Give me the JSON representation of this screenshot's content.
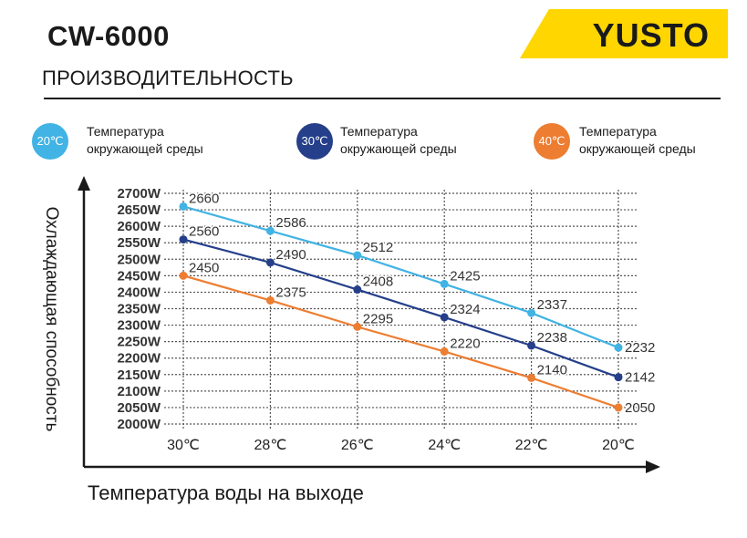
{
  "header": {
    "model": "CW-6000",
    "brand": "YUSTO",
    "section_title": "ПРОИЗВОДИТЕЛЬНОСТЬ"
  },
  "legend": [
    {
      "badge": "20℃",
      "line1": "Температура",
      "line2": "окружающей среды",
      "color": "#41b3e4"
    },
    {
      "badge": "30℃",
      "line1": "Температура",
      "line2": "окружающей среды",
      "color": "#253f8a"
    },
    {
      "badge": "40℃",
      "line1": "Температура",
      "line2": "окружающей среды",
      "color": "#ed7d31"
    }
  ],
  "chart_data": {
    "type": "line",
    "title": "",
    "xlabel": "Температура воды на выходе",
    "ylabel": "Охлаждающая способность",
    "categories": [
      "30℃",
      "28℃",
      "26℃",
      "24℃",
      "22℃",
      "20℃"
    ],
    "y_ticks": [
      "2700W",
      "2650W",
      "2600W",
      "2550W",
      "2500W",
      "2450W",
      "2400W",
      "2350W",
      "2300W",
      "2250W",
      "2200W",
      "2150W",
      "2100W",
      "2050W",
      "2000W"
    ],
    "ylim": [
      2000,
      2700
    ],
    "grid": true,
    "series": [
      {
        "name": "20℃",
        "color": "#41b3e4",
        "values": [
          2660,
          2586,
          2512,
          2425,
          2337,
          2232
        ]
      },
      {
        "name": "30℃",
        "color": "#253f8a",
        "values": [
          2560,
          2490,
          2408,
          2324,
          2238,
          2142
        ]
      },
      {
        "name": "40℃",
        "color": "#ed7d31",
        "values": [
          2450,
          2375,
          2295,
          2220,
          2140,
          2050
        ]
      }
    ]
  }
}
